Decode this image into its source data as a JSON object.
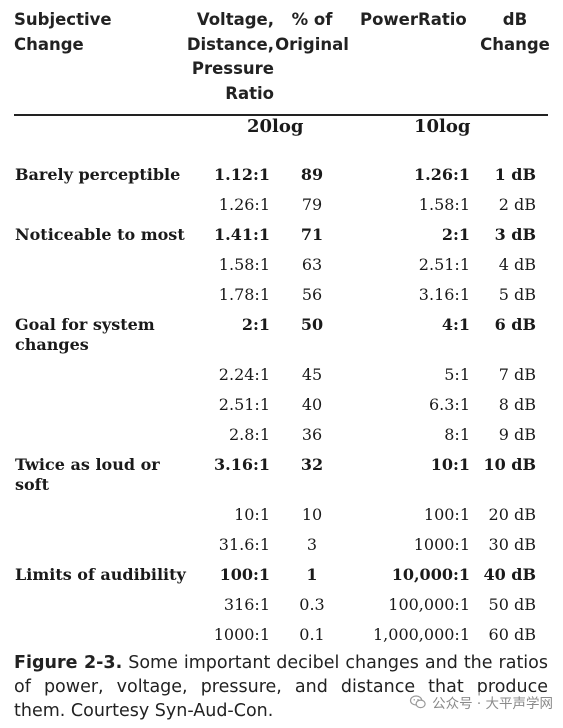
{
  "headers": {
    "subjective": "Subjective Change",
    "voltage": [
      "Voltage,",
      "Distance,",
      "Pressure",
      "Ratio"
    ],
    "percent": [
      "% of",
      "Original"
    ],
    "power": "PowerRatio",
    "db": [
      "dB",
      "Change"
    ]
  },
  "subheaders": {
    "left": "20log",
    "right": "10log"
  },
  "rows": [
    {
      "label": "Barely perceptible",
      "voltage": "1.12:1",
      "percent": "89",
      "power": "1.26:1",
      "db": "1 dB",
      "bold": true
    },
    {
      "label": "",
      "voltage": "1.26:1",
      "percent": "79",
      "power": "1.58:1",
      "db": "2 dB",
      "bold": false
    },
    {
      "label": "Noticeable to most",
      "voltage": "1.41:1",
      "percent": "71",
      "power": "2:1",
      "db": "3 dB",
      "bold": true
    },
    {
      "label": "",
      "voltage": "1.58:1",
      "percent": "63",
      "power": "2.51:1",
      "db": "4 dB",
      "bold": false
    },
    {
      "label": "",
      "voltage": "1.78:1",
      "percent": "56",
      "power": "3.16:1",
      "db": "5 dB",
      "bold": false
    },
    {
      "label": "Goal for system changes",
      "voltage": "2:1",
      "percent": "50",
      "power": "4:1",
      "db": "6 dB",
      "bold": true
    },
    {
      "label": "",
      "voltage": "2.24:1",
      "percent": "45",
      "power": "5:1",
      "db": "7 dB",
      "bold": false
    },
    {
      "label": "",
      "voltage": "2.51:1",
      "percent": "40",
      "power": "6.3:1",
      "db": "8 dB",
      "bold": false
    },
    {
      "label": "",
      "voltage": "2.8:1",
      "percent": "36",
      "power": "8:1",
      "db": "9 dB",
      "bold": false
    },
    {
      "label": "Twice as loud or soft",
      "voltage": "3.16:1",
      "percent": "32",
      "power": "10:1",
      "db": "10 dB",
      "bold": true
    },
    {
      "label": "",
      "voltage": "10:1",
      "percent": "10",
      "power": "100:1",
      "db": "20 dB",
      "bold": false
    },
    {
      "label": "",
      "voltage": "31.6:1",
      "percent": "3",
      "power": "1000:1",
      "db": "30 dB",
      "bold": false
    },
    {
      "label": "Limits of audibility",
      "voltage": "100:1",
      "percent": "1",
      "power": "10,000:1",
      "db": "40 dB",
      "bold": true
    },
    {
      "label": "",
      "voltage": "316:1",
      "percent": "0.3",
      "power": "100,000:1",
      "db": "50 dB",
      "bold": false
    },
    {
      "label": "",
      "voltage": "1000:1",
      "percent": "0.1",
      "power": "1,000,000:1",
      "db": "60 dB",
      "bold": false
    }
  ],
  "caption": {
    "figure": "Figure 2-3.",
    "text": " Some important decibel changes and the ratios of power, voltage, pressure, and distance that produce them. Courtesy Syn-Aud-Con."
  },
  "watermark": "公众号 · 大平声学网"
}
